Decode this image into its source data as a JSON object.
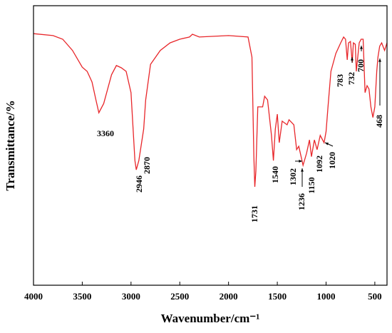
{
  "chart_data": {
    "type": "line",
    "x_label": "Wavenumber/cm⁻¹",
    "y_label": "Transmittance/%",
    "xlim": [
      4000,
      375
    ],
    "xticks": [
      4000,
      3500,
      3000,
      2500,
      2000,
      1500,
      1000,
      500
    ],
    "ylim": [
      0,
      100
    ],
    "color": "#e8262a",
    "x": [
      4000,
      3800,
      3700,
      3600,
      3500,
      3450,
      3400,
      3360,
      3330,
      3280,
      3200,
      3150,
      3100,
      3050,
      3000,
      2960,
      2946,
      2920,
      2870,
      2850,
      2800,
      2700,
      2600,
      2500,
      2400,
      2370,
      2300,
      2000,
      1800,
      1760,
      1740,
      1731,
      1720,
      1700,
      1650,
      1630,
      1600,
      1560,
      1540,
      1520,
      1500,
      1480,
      1450,
      1400,
      1380,
      1330,
      1302,
      1280,
      1236,
      1200,
      1170,
      1150,
      1120,
      1092,
      1060,
      1020,
      1000,
      980,
      950,
      900,
      850,
      820,
      800,
      783,
      770,
      750,
      732,
      720,
      700,
      690,
      660,
      640,
      620,
      600,
      580,
      560,
      540,
      520,
      500,
      480,
      468,
      450,
      430,
      400,
      375
    ],
    "values": [
      90,
      89.3,
      88,
      84,
      78,
      76.5,
      72.7,
      66.3,
      61.7,
      65,
      75.3,
      78.6,
      77.8,
      76.5,
      68.9,
      44.6,
      41.3,
      44.6,
      55.9,
      66.3,
      79,
      84,
      86.7,
      88,
      88.8,
      89.8,
      88.8,
      89.3,
      88.8,
      81.6,
      45.9,
      35.2,
      40.8,
      63.8,
      63.8,
      67.6,
      66.3,
      53.6,
      44.6,
      55.9,
      61.2,
      51,
      58.7,
      57.4,
      59.2,
      57.4,
      48.5,
      49.7,
      42.9,
      47.2,
      52,
      46,
      52,
      48.5,
      53.6,
      51,
      55,
      63.8,
      76.5,
      82.9,
      86.7,
      88.8,
      88,
      80.6,
      86.7,
      87.2,
      79.6,
      86.7,
      86.2,
      76.5,
      86.7,
      88,
      88,
      68.9,
      71.4,
      70.2,
      63.8,
      60,
      63.8,
      76.5,
      81.6,
      85.5,
      86.7,
      84,
      86.7
    ],
    "annotations": [
      "3360",
      "2946",
      "2870",
      "1731",
      "1540",
      "1302",
      "1236",
      "1150",
      "1092",
      "1020",
      "783",
      "732",
      "700",
      "468"
    ]
  }
}
